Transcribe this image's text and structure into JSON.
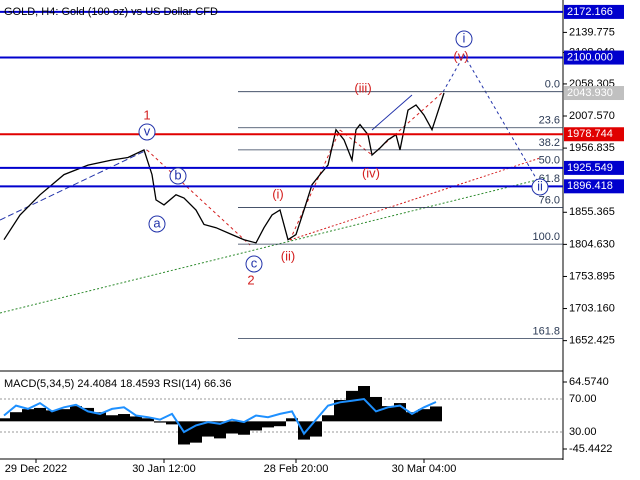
{
  "chart_data": [
    {
      "type": "line",
      "title": "GOLD, H4:  Gold (100 oz) vs US Dollar CFD",
      "color": "#000000",
      "x": [
        1,
        5,
        10,
        16,
        22,
        28,
        32,
        36,
        38,
        39,
        41,
        44,
        46,
        49,
        51,
        54,
        58,
        61,
        64,
        66,
        68,
        70,
        72,
        74,
        76,
        78,
        80,
        82,
        84,
        86,
        88,
        89,
        90,
        92,
        93,
        95,
        97,
        99,
        100,
        101,
        102,
        104,
        106,
        108,
        109,
        111
      ],
      "values": [
        1812,
        1851,
        1883,
        1915,
        1930,
        1938,
        1942,
        1954,
        1915,
        1875,
        1867,
        1883,
        1878,
        1859,
        1836,
        1831,
        1820,
        1812,
        1807,
        1831,
        1851,
        1859,
        1812,
        1820,
        1859,
        1899,
        1915,
        1930,
        1986,
        1970,
        1938,
        1986,
        1994,
        1978,
        1946,
        1957,
        1970,
        1978,
        1954,
        1986,
        2017,
        2025,
        2009,
        1986,
        2005,
        2043.93
      ],
      "xlim": [
        0,
        140.75
      ],
      "xticks": [
        {
          "value": 9,
          "label": "29 Dec 2022"
        },
        {
          "value": 41,
          "label": "30 Jan 12:00"
        },
        {
          "value": 74,
          "label": "28 Feb 20:00"
        },
        {
          "value": 106,
          "label": "30 Mar 04:00"
        }
      ],
      "ylim": [
        1606,
        2191
      ],
      "yticks": [
        2139.775,
        {
          "value": 2108.04,
          "label": "2108.040"
        },
        2058.305,
        {
          "value": 2007.57,
          "label": "2007.570"
        },
        1956.835,
        1855.365,
        {
          "value": 1804.63,
          "label": "1804.630"
        },
        1753.895,
        {
          "value": 1703.16,
          "label": "1703.160"
        },
        1652.425
      ],
      "levels": [
        {
          "value": 2172.166,
          "label": "2172.166",
          "color": "#0000cd"
        },
        {
          "value": 2100,
          "label": "2100.000",
          "color": "#0000cd"
        },
        {
          "value": 2043.93,
          "label": "2043.930",
          "color": "#c0c0c0"
        },
        {
          "value": 1978.744,
          "label": "1978.744",
          "color": "#e00000"
        },
        {
          "value": 1925.549,
          "label": "1925.549",
          "color": "#0000cd"
        },
        {
          "value": 1896.418,
          "label": "1896.418",
          "color": "#0000cd"
        }
      ],
      "fibonacci": [
        {
          "label": "0.0",
          "price": 2046
        },
        {
          "label": "23.6",
          "price": 1989
        },
        {
          "label": "38.2",
          "price": 1954
        },
        {
          "label": "50.0",
          "price": 1926
        },
        {
          "label": "61.8",
          "price": 1897
        },
        {
          "label": "76.0",
          "price": 1863
        },
        {
          "label": "100.0",
          "price": 1805
        },
        {
          "label": "161.8",
          "price": 1656
        }
      ],
      "annotations": [
        {
          "text": "1",
          "color": "#d42020",
          "circled": false
        },
        {
          "text": "v",
          "color": "#2233aa",
          "circled": true
        },
        {
          "text": "b",
          "color": "#2233aa",
          "circled": true
        },
        {
          "text": "a",
          "color": "#2233aa",
          "circled": true
        },
        {
          "text": "c",
          "color": "#2233aa",
          "circled": true
        },
        {
          "text": "2",
          "color": "#d42020",
          "circled": false
        },
        {
          "text": "(i)",
          "color": "#d42020",
          "circled": false
        },
        {
          "text": "(ii)",
          "color": "#d42020",
          "circled": false
        },
        {
          "text": "(iii)",
          "color": "#d42020",
          "circled": false
        },
        {
          "text": "(iv)",
          "color": "#d42020",
          "circled": false
        },
        {
          "text": "(v)",
          "color": "#d42020",
          "circled": false
        },
        {
          "text": "i",
          "color": "#2233aa",
          "circled": true
        },
        {
          "text": "ii",
          "color": "#2233aa",
          "circled": true
        }
      ]
    },
    {
      "type": "bar",
      "title": "MACD(5,34,5) 24.4084 18.4593 RSI(14) 66.36",
      "x": [
        1,
        4,
        7,
        10,
        13,
        16,
        19,
        22,
        25,
        28,
        31,
        34,
        37,
        40,
        43,
        46,
        49,
        52,
        55,
        58,
        61,
        64,
        67,
        70,
        73,
        76,
        79,
        82,
        85,
        88,
        91,
        94,
        97,
        100,
        103,
        106,
        109
      ],
      "series": [
        {
          "color": "#000000",
          "values": [
            5,
            15,
            20,
            22,
            18,
            20,
            25,
            22,
            15,
            10,
            12,
            8,
            5,
            -2,
            -5,
            -38,
            -35,
            -25,
            -28,
            -20,
            -22,
            -15,
            -10,
            -8,
            5,
            -30,
            -25,
            10,
            35,
            50,
            58,
            40,
            25,
            30,
            15,
            20,
            24.4084
          ]
        },
        {
          "color": "#1e90ff",
          "axis": "y2",
          "values": [
            50,
            62,
            58,
            65,
            55,
            60,
            63,
            55,
            52,
            58,
            60,
            50,
            48,
            45,
            52,
            30,
            38,
            42,
            40,
            45,
            42,
            50,
            48,
            52,
            55,
            28,
            45,
            62,
            66,
            68,
            70,
            55,
            60,
            62,
            52,
            60,
            66.36
          ]
        }
      ],
      "ylim": [
        -60.2,
        76.07
      ],
      "yticks": [
        {
          "value": 64.574,
          "label": "64.5740"
        },
        {
          "value": -45.4422,
          "label": "-45.4422"
        }
      ],
      "y2lim": [
        -1.5,
        99.1
      ],
      "y2ticks": [
        {
          "value": 70,
          "label": "70.00"
        },
        {
          "value": 30,
          "label": "30.00"
        }
      ]
    }
  ]
}
